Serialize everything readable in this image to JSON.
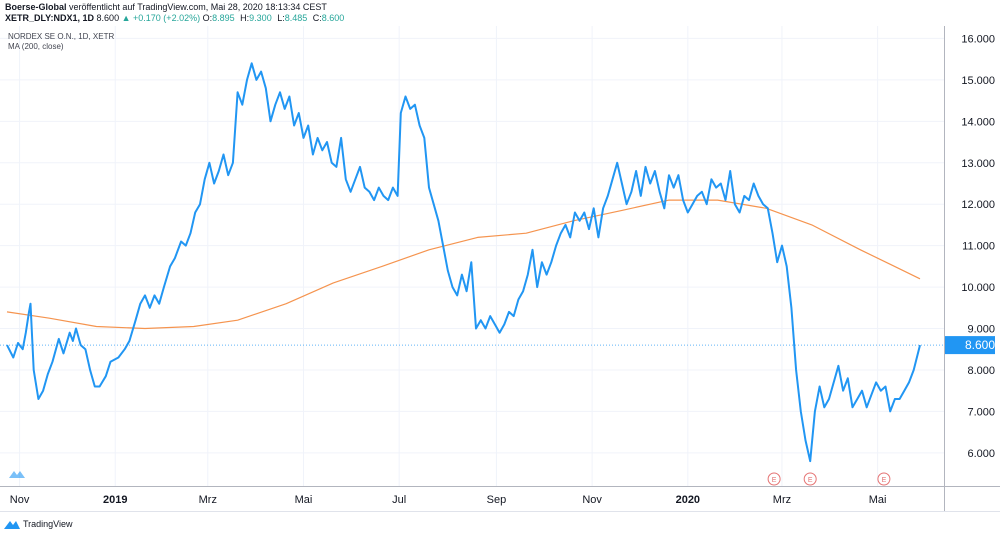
{
  "header": {
    "publisher": "Boerse-Global",
    "published_text": "veröffentlicht auf TradingView.com, Mai 28, 2020 18:13:34 CEST",
    "symbol": "XETR_DLY:NDX1, 1D",
    "last": "8.600",
    "change": "+0.170 (+2.02%)",
    "ohlc": [
      {
        "k": "O:",
        "v": "8.895"
      },
      {
        "k": "H:",
        "v": "9.300"
      },
      {
        "k": "L:",
        "v": "8.485"
      },
      {
        "k": "C:",
        "v": "8.600"
      }
    ]
  },
  "legend": {
    "title": "NORDEX SE O.N., 1D, XETR",
    "indicator": "MA (200, close)"
  },
  "footer": {
    "brand": "TradingView"
  },
  "colors": {
    "price_line": "#2196f3",
    "ma_line": "#f5944f",
    "price_label_bg": "#2196f3",
    "up": "#26a69a",
    "earnings_marker": "#e57373"
  },
  "chart_data": {
    "type": "line",
    "title": "NORDEX SE O.N., 1D, XETR",
    "y_axis_side": "right",
    "ylim": [
      5.2,
      16.3
    ],
    "yticks": [
      "6.000",
      "7.000",
      "8.000",
      "9.000",
      "10.000",
      "11.000",
      "12.000",
      "13.000",
      "14.000",
      "15.000",
      "16.000"
    ],
    "xticks": [
      {
        "label": "Nov",
        "x": "2018-11-01",
        "bold": false
      },
      {
        "label": "2019",
        "x": "2019-01-01",
        "bold": true
      },
      {
        "label": "Mrz",
        "x": "2019-03-01",
        "bold": false
      },
      {
        "label": "Mai",
        "x": "2019-05-01",
        "bold": false
      },
      {
        "label": "Jul",
        "x": "2019-07-01",
        "bold": false
      },
      {
        "label": "Sep",
        "x": "2019-09-01",
        "bold": false
      },
      {
        "label": "Nov",
        "x": "2019-11-01",
        "bold": false
      },
      {
        "label": "2020",
        "x": "2020-01-01",
        "bold": true
      },
      {
        "label": "Mrz",
        "x": "2020-03-01",
        "bold": false
      },
      {
        "label": "Mai",
        "x": "2020-05-01",
        "bold": false
      }
    ],
    "last_price_label": "8.600",
    "last_price": 8.6,
    "grid": true,
    "earnings_markers": [
      {
        "x": "2020-02-25",
        "label": "E"
      },
      {
        "x": "2020-03-19",
        "label": "E"
      },
      {
        "x": "2020-05-05",
        "label": "E"
      }
    ],
    "series": [
      {
        "name": "NORDEX SE O.N.",
        "points": [
          [
            "2018-10-24",
            8.6
          ],
          [
            "2018-10-28",
            8.3
          ],
          [
            "2018-10-31",
            8.65
          ],
          [
            "2018-11-03",
            8.5
          ],
          [
            "2018-11-05",
            8.9
          ],
          [
            "2018-11-07",
            9.4
          ],
          [
            "2018-11-08",
            9.6
          ],
          [
            "2018-11-10",
            8.0
          ],
          [
            "2018-11-13",
            7.3
          ],
          [
            "2018-11-16",
            7.5
          ],
          [
            "2018-11-19",
            7.9
          ],
          [
            "2018-11-22",
            8.2
          ],
          [
            "2018-11-26",
            8.75
          ],
          [
            "2018-11-29",
            8.4
          ],
          [
            "2018-12-03",
            8.9
          ],
          [
            "2018-12-05",
            8.7
          ],
          [
            "2018-12-07",
            9.0
          ],
          [
            "2018-12-10",
            8.6
          ],
          [
            "2018-12-13",
            8.5
          ],
          [
            "2018-12-16",
            8.0
          ],
          [
            "2018-12-19",
            7.6
          ],
          [
            "2018-12-22",
            7.6
          ],
          [
            "2018-12-26",
            7.85
          ],
          [
            "2018-12-29",
            8.2
          ],
          [
            "2019-01-03",
            8.3
          ],
          [
            "2019-01-07",
            8.5
          ],
          [
            "2019-01-10",
            8.7
          ],
          [
            "2019-01-14",
            9.2
          ],
          [
            "2019-01-17",
            9.6
          ],
          [
            "2019-01-20",
            9.8
          ],
          [
            "2019-01-23",
            9.5
          ],
          [
            "2019-01-26",
            9.8
          ],
          [
            "2019-01-29",
            9.6
          ],
          [
            "2019-02-01",
            10.0
          ],
          [
            "2019-02-05",
            10.5
          ],
          [
            "2019-02-08",
            10.7
          ],
          [
            "2019-02-12",
            11.1
          ],
          [
            "2019-02-15",
            11.0
          ],
          [
            "2019-02-18",
            11.3
          ],
          [
            "2019-02-21",
            11.8
          ],
          [
            "2019-02-24",
            12.0
          ],
          [
            "2019-02-27",
            12.6
          ],
          [
            "2019-03-02",
            13.0
          ],
          [
            "2019-03-05",
            12.5
          ],
          [
            "2019-03-08",
            12.8
          ],
          [
            "2019-03-11",
            13.2
          ],
          [
            "2019-03-14",
            12.7
          ],
          [
            "2019-03-17",
            13.0
          ],
          [
            "2019-03-20",
            14.7
          ],
          [
            "2019-03-23",
            14.4
          ],
          [
            "2019-03-26",
            15.0
          ],
          [
            "2019-03-29",
            15.4
          ],
          [
            "2019-04-01",
            15.0
          ],
          [
            "2019-04-04",
            15.2
          ],
          [
            "2019-04-07",
            14.8
          ],
          [
            "2019-04-10",
            14.0
          ],
          [
            "2019-04-13",
            14.4
          ],
          [
            "2019-04-16",
            14.7
          ],
          [
            "2019-04-19",
            14.3
          ],
          [
            "2019-04-22",
            14.6
          ],
          [
            "2019-04-25",
            13.9
          ],
          [
            "2019-04-28",
            14.2
          ],
          [
            "2019-05-01",
            13.6
          ],
          [
            "2019-05-04",
            13.9
          ],
          [
            "2019-05-07",
            13.2
          ],
          [
            "2019-05-10",
            13.6
          ],
          [
            "2019-05-13",
            13.3
          ],
          [
            "2019-05-16",
            13.5
          ],
          [
            "2019-05-19",
            13.0
          ],
          [
            "2019-05-22",
            12.9
          ],
          [
            "2019-05-25",
            13.6
          ],
          [
            "2019-05-28",
            12.6
          ],
          [
            "2019-05-31",
            12.3
          ],
          [
            "2019-06-03",
            12.6
          ],
          [
            "2019-06-06",
            12.9
          ],
          [
            "2019-06-09",
            12.4
          ],
          [
            "2019-06-12",
            12.3
          ],
          [
            "2019-06-15",
            12.1
          ],
          [
            "2019-06-18",
            12.4
          ],
          [
            "2019-06-21",
            12.2
          ],
          [
            "2019-06-24",
            12.1
          ],
          [
            "2019-06-27",
            12.4
          ],
          [
            "2019-06-30",
            12.2
          ],
          [
            "2019-07-02",
            14.2
          ],
          [
            "2019-07-05",
            14.6
          ],
          [
            "2019-07-08",
            14.3
          ],
          [
            "2019-07-11",
            14.4
          ],
          [
            "2019-07-14",
            13.9
          ],
          [
            "2019-07-17",
            13.6
          ],
          [
            "2019-07-20",
            12.4
          ],
          [
            "2019-07-23",
            12.0
          ],
          [
            "2019-07-26",
            11.6
          ],
          [
            "2019-07-29",
            11.0
          ],
          [
            "2019-08-01",
            10.4
          ],
          [
            "2019-08-04",
            10.0
          ],
          [
            "2019-08-07",
            9.8
          ],
          [
            "2019-08-10",
            10.3
          ],
          [
            "2019-08-13",
            9.9
          ],
          [
            "2019-08-16",
            10.6
          ],
          [
            "2019-08-19",
            9.0
          ],
          [
            "2019-08-22",
            9.2
          ],
          [
            "2019-08-25",
            9.0
          ],
          [
            "2019-08-28",
            9.3
          ],
          [
            "2019-08-31",
            9.1
          ],
          [
            "2019-09-03",
            8.9
          ],
          [
            "2019-09-06",
            9.1
          ],
          [
            "2019-09-09",
            9.4
          ],
          [
            "2019-09-12",
            9.3
          ],
          [
            "2019-09-15",
            9.7
          ],
          [
            "2019-09-18",
            9.9
          ],
          [
            "2019-09-21",
            10.3
          ],
          [
            "2019-09-24",
            10.9
          ],
          [
            "2019-09-27",
            10.0
          ],
          [
            "2019-09-30",
            10.6
          ],
          [
            "2019-10-03",
            10.3
          ],
          [
            "2019-10-06",
            10.6
          ],
          [
            "2019-10-09",
            11.0
          ],
          [
            "2019-10-12",
            11.3
          ],
          [
            "2019-10-15",
            11.5
          ],
          [
            "2019-10-18",
            11.2
          ],
          [
            "2019-10-21",
            11.8
          ],
          [
            "2019-10-24",
            11.6
          ],
          [
            "2019-10-27",
            11.8
          ],
          [
            "2019-10-30",
            11.4
          ],
          [
            "2019-11-02",
            11.9
          ],
          [
            "2019-11-05",
            11.2
          ],
          [
            "2019-11-08",
            11.9
          ],
          [
            "2019-11-11",
            12.2
          ],
          [
            "2019-11-14",
            12.6
          ],
          [
            "2019-11-17",
            13.0
          ],
          [
            "2019-11-20",
            12.5
          ],
          [
            "2019-11-23",
            12.0
          ],
          [
            "2019-11-26",
            12.3
          ],
          [
            "2019-11-29",
            12.8
          ],
          [
            "2019-12-02",
            12.2
          ],
          [
            "2019-12-05",
            12.9
          ],
          [
            "2019-12-08",
            12.5
          ],
          [
            "2019-12-11",
            12.8
          ],
          [
            "2019-12-14",
            12.3
          ],
          [
            "2019-12-17",
            11.9
          ],
          [
            "2019-12-20",
            12.7
          ],
          [
            "2019-12-23",
            12.4
          ],
          [
            "2019-12-26",
            12.7
          ],
          [
            "2019-12-29",
            12.1
          ],
          [
            "2020-01-01",
            11.8
          ],
          [
            "2020-01-04",
            12.0
          ],
          [
            "2020-01-07",
            12.2
          ],
          [
            "2020-01-10",
            12.3
          ],
          [
            "2020-01-13",
            12.0
          ],
          [
            "2020-01-16",
            12.6
          ],
          [
            "2020-01-19",
            12.4
          ],
          [
            "2020-01-22",
            12.5
          ],
          [
            "2020-01-25",
            12.1
          ],
          [
            "2020-01-28",
            12.8
          ],
          [
            "2020-01-31",
            12.0
          ],
          [
            "2020-02-03",
            11.8
          ],
          [
            "2020-02-06",
            12.2
          ],
          [
            "2020-02-09",
            12.1
          ],
          [
            "2020-02-12",
            12.5
          ],
          [
            "2020-02-15",
            12.2
          ],
          [
            "2020-02-18",
            12.0
          ],
          [
            "2020-02-21",
            11.9
          ],
          [
            "2020-02-24",
            11.3
          ],
          [
            "2020-02-27",
            10.6
          ],
          [
            "2020-03-01",
            11.0
          ],
          [
            "2020-03-04",
            10.5
          ],
          [
            "2020-03-07",
            9.5
          ],
          [
            "2020-03-10",
            8.0
          ],
          [
            "2020-03-13",
            7.0
          ],
          [
            "2020-03-16",
            6.3
          ],
          [
            "2020-03-19",
            5.8
          ],
          [
            "2020-03-22",
            7.0
          ],
          [
            "2020-03-25",
            7.6
          ],
          [
            "2020-03-28",
            7.1
          ],
          [
            "2020-03-31",
            7.3
          ],
          [
            "2020-04-03",
            7.7
          ],
          [
            "2020-04-06",
            8.1
          ],
          [
            "2020-04-09",
            7.5
          ],
          [
            "2020-04-12",
            7.8
          ],
          [
            "2020-04-15",
            7.1
          ],
          [
            "2020-04-18",
            7.3
          ],
          [
            "2020-04-21",
            7.5
          ],
          [
            "2020-04-24",
            7.1
          ],
          [
            "2020-04-27",
            7.4
          ],
          [
            "2020-04-30",
            7.7
          ],
          [
            "2020-05-03",
            7.5
          ],
          [
            "2020-05-06",
            7.6
          ],
          [
            "2020-05-09",
            7.0
          ],
          [
            "2020-05-12",
            7.3
          ],
          [
            "2020-05-15",
            7.3
          ],
          [
            "2020-05-18",
            7.5
          ],
          [
            "2020-05-21",
            7.7
          ],
          [
            "2020-05-24",
            8.0
          ],
          [
            "2020-05-28",
            8.6
          ]
        ]
      },
      {
        "name": "MA (200, close)",
        "points": [
          [
            "2018-10-24",
            9.4
          ],
          [
            "2018-11-20",
            9.25
          ],
          [
            "2018-12-20",
            9.05
          ],
          [
            "2019-01-20",
            9.0
          ],
          [
            "2019-02-20",
            9.05
          ],
          [
            "2019-03-20",
            9.2
          ],
          [
            "2019-04-20",
            9.6
          ],
          [
            "2019-05-20",
            10.1
          ],
          [
            "2019-06-20",
            10.5
          ],
          [
            "2019-07-20",
            10.9
          ],
          [
            "2019-08-20",
            11.2
          ],
          [
            "2019-09-20",
            11.3
          ],
          [
            "2019-10-20",
            11.6
          ],
          [
            "2019-11-20",
            11.85
          ],
          [
            "2019-12-20",
            12.1
          ],
          [
            "2020-01-20",
            12.1
          ],
          [
            "2020-02-20",
            11.9
          ],
          [
            "2020-03-20",
            11.5
          ],
          [
            "2020-04-20",
            10.9
          ],
          [
            "2020-05-28",
            10.2
          ]
        ]
      }
    ]
  }
}
